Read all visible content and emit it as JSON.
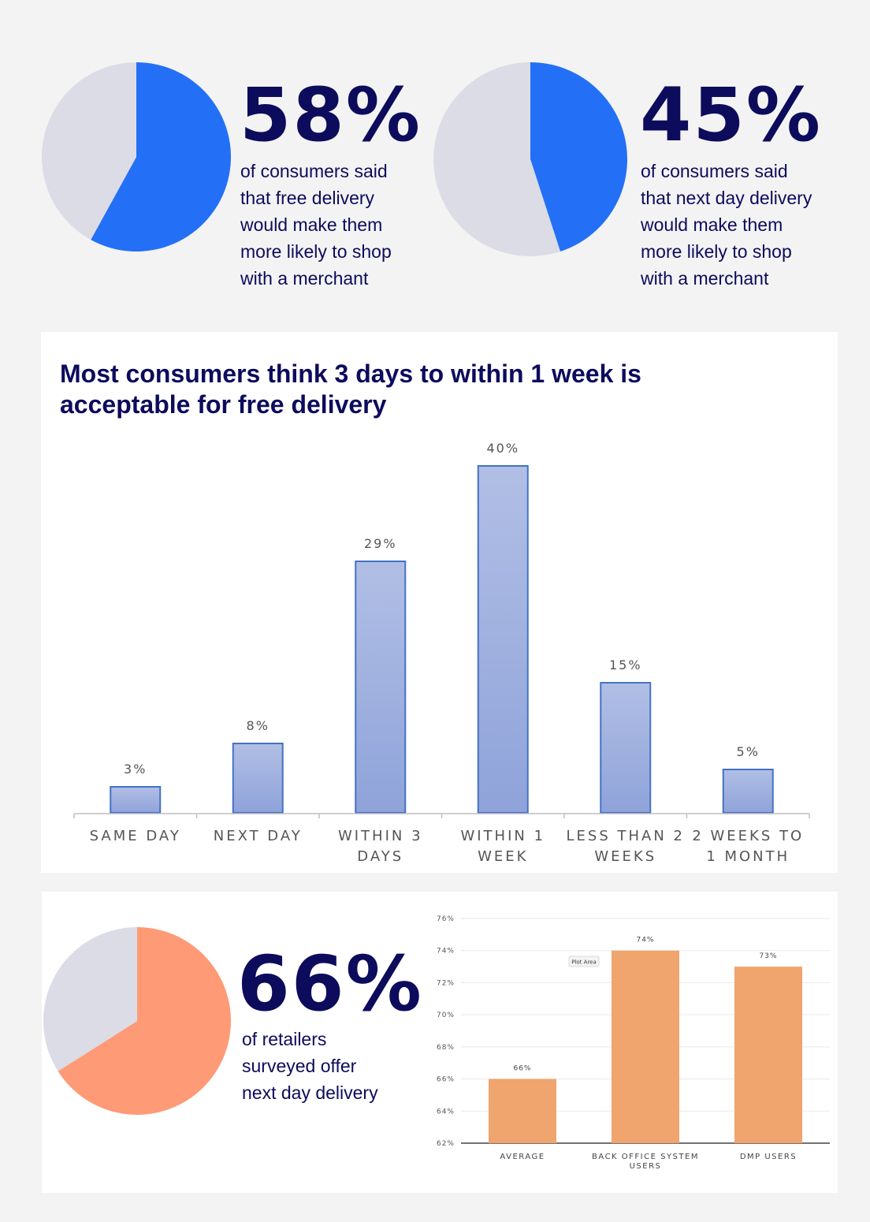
{
  "stats": [
    {
      "number": "58%",
      "caption": [
        "of consumers said",
        "that free delivery",
        "would make them",
        "more likely to shop",
        "with a merchant"
      ],
      "chart_data": {
        "type": "pie",
        "values": [
          58,
          42
        ],
        "colors": [
          "#2370f7",
          "#dcdce6"
        ]
      }
    },
    {
      "number": "45%",
      "caption": [
        "of consumers said",
        "that next day delivery",
        "would make them",
        "more likely to shop",
        "with a merchant"
      ],
      "chart_data": {
        "type": "pie",
        "values": [
          45,
          55
        ],
        "colors": [
          "#2370f7",
          "#dcdce6"
        ]
      }
    },
    {
      "number": "66%",
      "caption": [
        "of retailers",
        "surveyed offer",
        "next day delivery"
      ],
      "chart_data": {
        "type": "pie",
        "values": [
          66,
          34
        ],
        "colors": [
          "#fe9a76",
          "#dcdce6"
        ]
      }
    }
  ],
  "delivery_panel": {
    "title": [
      "Most consumers think 3 days to within 1 week is",
      "acceptable for free delivery"
    ]
  },
  "chart_data": {
    "type": "bar",
    "categories": [
      [
        "SAME DAY"
      ],
      [
        "NEXT DAY"
      ],
      [
        "WITHIN 3",
        "DAYS"
      ],
      [
        "WITHIN 1",
        "WEEK"
      ],
      [
        "LESS THAN 2",
        "WEEKS"
      ],
      [
        "2 WEEKS TO",
        "1 MONTH"
      ]
    ],
    "values": [
      3,
      8,
      29,
      40,
      15,
      5
    ],
    "value_labels": [
      "3%",
      "8%",
      "29%",
      "40%",
      "15%",
      "5%"
    ],
    "ylim": [
      0,
      40
    ],
    "bar_color": "#8fa3da",
    "bar_border": "#4472c4"
  },
  "retailer_chart": {
    "chart_data": {
      "type": "bar",
      "categories": [
        [
          "AVERAGE"
        ],
        [
          "BACK OFFICE SYSTEM",
          "USERS"
        ],
        [
          "DMP USERS"
        ]
      ],
      "values": [
        66,
        74,
        73
      ],
      "value_labels": [
        "66%",
        "74%",
        "73%"
      ],
      "ylim": [
        62,
        76
      ],
      "yticks": [
        "76%",
        "74%",
        "72%",
        "70%",
        "68%",
        "66%",
        "64%",
        "62%"
      ],
      "grid": true,
      "bar_color": "#f0a46e"
    },
    "tooltip": "Plot Area"
  }
}
